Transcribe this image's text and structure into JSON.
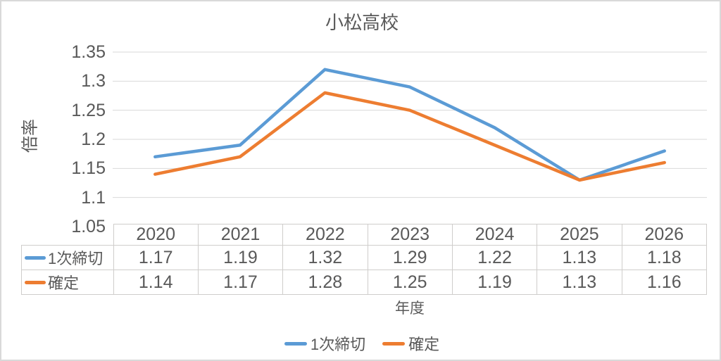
{
  "chart_data": {
    "type": "line",
    "title": "小松高校",
    "xlabel": "年度",
    "ylabel": "倍率",
    "categories": [
      "2020",
      "2021",
      "2022",
      "2023",
      "2024",
      "2025",
      "2026"
    ],
    "series": [
      {
        "name": "1次締切",
        "color": "#5B9BD5",
        "values": [
          1.17,
          1.19,
          1.32,
          1.29,
          1.22,
          1.13,
          1.18
        ]
      },
      {
        "name": "確定",
        "color": "#ED7D31",
        "values": [
          1.14,
          1.17,
          1.28,
          1.25,
          1.19,
          1.13,
          1.16
        ]
      }
    ],
    "ylim": [
      1.05,
      1.35
    ],
    "ytick_step": 0.05,
    "yticks": [
      "1.35",
      "1.3",
      "1.25",
      "1.2",
      "1.15",
      "1.1",
      "1.05"
    ],
    "grid": true,
    "legend_position": "bottom",
    "data_table": true,
    "colors": {
      "text": "#595959",
      "gridline": "#d9d9d9",
      "table_border": "#cfcdcb"
    }
  }
}
